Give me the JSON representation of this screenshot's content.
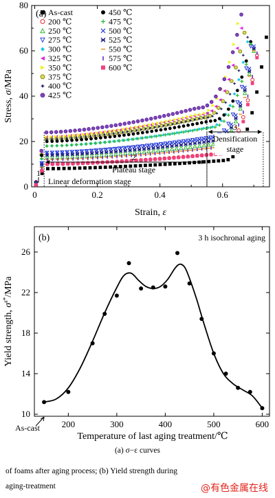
{
  "chart_data": [
    {
      "type": "scatter",
      "panel_label": "(a)",
      "xlabel_main": "Strain, ",
      "xlabel_symbol": "ε",
      "ylabel_main": "Stress, ",
      "ylabel_symbol": "σ",
      "ylabel_unit": "/MPa",
      "xlim": [
        -0.01,
        0.75
      ],
      "ylim": [
        0,
        80
      ],
      "xticks": [
        "0",
        "0.2",
        "0.4",
        "0.6"
      ],
      "xtick_values": [
        0,
        0.2,
        0.4,
        0.6
      ],
      "yticks": [
        "0",
        "20",
        "40",
        "60",
        "80"
      ],
      "ytick_values": [
        0,
        20,
        40,
        60,
        80
      ],
      "legend_position": "top-left",
      "series": [
        {
          "name": "As-cast",
          "marker": "square",
          "color": "#000000",
          "plateau": 8,
          "densify": 0.6,
          "peak_strain": 0.74,
          "peak": 66
        },
        {
          "name": "200 ℃",
          "marker": "circle-open",
          "color": "#e8262a",
          "plateau": 10,
          "densify": 0.58,
          "peak_strain": 0.71,
          "peak": 58
        },
        {
          "name": "250 ℃",
          "marker": "triangle-open",
          "color": "#2eb82e",
          "plateau": 13,
          "densify": 0.57,
          "peak_strain": 0.7,
          "peak": 60
        },
        {
          "name": "275 ℃",
          "marker": "tri-down-open",
          "color": "#2a3fd8",
          "plateau": 15,
          "densify": 0.56,
          "peak_strain": 0.69,
          "peak": 62
        },
        {
          "name": "300 ℃",
          "marker": "diamond",
          "color": "#1ec8e8",
          "plateau": 18,
          "densify": 0.55,
          "peak_strain": 0.68,
          "peak": 64
        },
        {
          "name": "325 ℃",
          "marker": "tri-left",
          "color": "#e020e0",
          "plateau": 22,
          "densify": 0.53,
          "peak_strain": 0.66,
          "peak": 70
        },
        {
          "name": "350 ℃",
          "marker": "tri-right",
          "color": "#f0f020",
          "plateau": 22,
          "densify": 0.52,
          "peak_strain": 0.65,
          "peak": 72
        },
        {
          "name": "375 ℃",
          "marker": "circle-cross",
          "color": "#8a8a10",
          "plateau": 21,
          "densify": 0.53,
          "peak_strain": 0.67,
          "peak": 68
        },
        {
          "name": "400 ℃",
          "marker": "star",
          "color": "#1a1a66",
          "plateau": 21,
          "densify": 0.54,
          "peak_strain": 0.68,
          "peak": 66
        },
        {
          "name": "425 ℃",
          "marker": "circle-half",
          "color": "#5a1aa0",
          "plateau": 24,
          "densify": 0.52,
          "peak_strain": 0.66,
          "peak": 76
        },
        {
          "name": "450 ℃",
          "marker": "circle",
          "color": "#000000",
          "plateau": 20,
          "densify": 0.56,
          "peak_strain": 0.69,
          "peak": 64
        },
        {
          "name": "475 ℃",
          "marker": "plus",
          "color": "#2eb82e",
          "plateau": 18,
          "densify": 0.56,
          "peak_strain": 0.69,
          "peak": 63
        },
        {
          "name": "500 ℃",
          "marker": "x",
          "color": "#2a3fd8",
          "plateau": 15,
          "densify": 0.57,
          "peak_strain": 0.7,
          "peak": 62
        },
        {
          "name": "525 ℃",
          "marker": "cross-star",
          "color": "#1a1a88",
          "plateau": 14,
          "densify": 0.57,
          "peak_strain": 0.7,
          "peak": 61
        },
        {
          "name": "550 ℃",
          "marker": "dash",
          "color": "#e89a20",
          "plateau": 12,
          "densify": 0.58,
          "peak_strain": 0.7,
          "peak": 60
        },
        {
          "name": "575 ℃",
          "marker": "vbar",
          "color": "#6a2ac8",
          "plateau": 12,
          "densify": 0.58,
          "peak_strain": 0.71,
          "peak": 59
        },
        {
          "name": "600 ℃",
          "marker": "square-dot",
          "color": "#f04080",
          "plateau": 10,
          "densify": 0.59,
          "peak_strain": 0.71,
          "peak": 57
        }
      ],
      "annotations": {
        "linear_stage": {
          "text": "Linear deformation stage",
          "marker_number": "1",
          "x_end": 0.03
        },
        "plateau_stage": {
          "text": "Plateau stage",
          "number": "2",
          "x_start": 0.03,
          "x_end": 0.55
        },
        "densification_stage": {
          "text_line1": "Densification",
          "text_line2": "stage",
          "number": "3",
          "x_start": 0.55,
          "x_end": 0.73
        }
      }
    },
    {
      "type": "line",
      "panel_label": "(b)",
      "annotation": "3 h isochronal aging",
      "xlabel": "Temperature of last aging treatment/℃",
      "ylabel_main": "Yield strength, ",
      "ylabel_symbol": "σ",
      "ylabel_unit": "/MPa",
      "xlim": [
        130,
        615
      ],
      "ylim": [
        9.8,
        28.5
      ],
      "xticks": [
        "200",
        "300",
        "400",
        "500",
        "600"
      ],
      "xtick_values": [
        200,
        300,
        400,
        500,
        600
      ],
      "yticks": [
        "10",
        "14",
        "18",
        "22",
        "26"
      ],
      "ytick_values": [
        10,
        14,
        18,
        22,
        26
      ],
      "as_cast_label": "As-cast",
      "as_cast_x": 150,
      "x": [
        150,
        200,
        250,
        275,
        300,
        325,
        350,
        375,
        400,
        425,
        450,
        475,
        500,
        525,
        550,
        575,
        600
      ],
      "y": [
        11.2,
        12.2,
        17.0,
        19.9,
        21.7,
        24.9,
        22.4,
        22.5,
        22.6,
        25.9,
        22.9,
        19.4,
        16.0,
        14.0,
        12.6,
        12.2,
        10.6
      ],
      "fit": [
        [
          150,
          11.2
        ],
        [
          175,
          11.5
        ],
        [
          200,
          12.6
        ],
        [
          225,
          14.6
        ],
        [
          250,
          17.2
        ],
        [
          275,
          20.0
        ],
        [
          300,
          22.5
        ],
        [
          315,
          23.7
        ],
        [
          330,
          23.9
        ],
        [
          345,
          23.2
        ],
        [
          360,
          22.6
        ],
        [
          375,
          22.4
        ],
        [
          390,
          22.6
        ],
        [
          405,
          23.3
        ],
        [
          420,
          24.4
        ],
        [
          430,
          24.8
        ],
        [
          440,
          24.5
        ],
        [
          450,
          23.4
        ],
        [
          465,
          21.3
        ],
        [
          480,
          18.9
        ],
        [
          500,
          16.0
        ],
        [
          520,
          14.0
        ],
        [
          540,
          13.0
        ],
        [
          560,
          12.4
        ],
        [
          580,
          11.8
        ],
        [
          600,
          10.6
        ]
      ]
    }
  ],
  "captions": {
    "sub_caption": "(a) σ−ε curves",
    "line1": "of foams after aging process; (b) Yield strength during",
    "line2": "aging-treatment"
  },
  "watermark": "@有色金属在线"
}
